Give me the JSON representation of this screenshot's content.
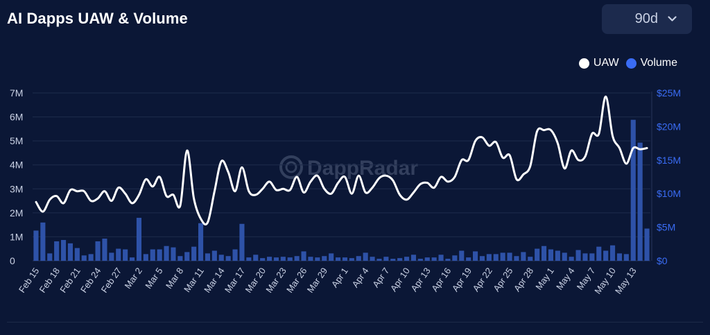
{
  "title": "AI Dapps UAW & Volume",
  "range_selector": {
    "value": "90d",
    "icon": "chevron-down-icon"
  },
  "legend": [
    {
      "label": "UAW",
      "color": "#ffffff"
    },
    {
      "label": "Volume",
      "color": "#3a6cf4"
    }
  ],
  "watermark": "DappRadar",
  "colors": {
    "background": "#0b1736",
    "grid": "#1e2c4c",
    "uaw": "#ffffff",
    "volume": "#2e52a8",
    "volume_axis": "#3a6cf4",
    "left_axis": "#c9d1e4"
  },
  "chart_data": {
    "type": "bar+line",
    "title": "AI Dapps UAW & Volume",
    "categories": [
      "Feb 15",
      "Feb 16",
      "Feb 17",
      "Feb 18",
      "Feb 19",
      "Feb 20",
      "Feb 21",
      "Feb 22",
      "Feb 23",
      "Feb 24",
      "Feb 25",
      "Feb 26",
      "Feb 27",
      "Feb 28",
      "Mar 1",
      "Mar 2",
      "Mar 3",
      "Mar 4",
      "Mar 5",
      "Mar 6",
      "Mar 7",
      "Mar 8",
      "Mar 9",
      "Mar 10",
      "Mar 11",
      "Mar 12",
      "Mar 13",
      "Mar 14",
      "Mar 15",
      "Mar 16",
      "Mar 17",
      "Mar 18",
      "Mar 19",
      "Mar 20",
      "Mar 21",
      "Mar 22",
      "Mar 23",
      "Mar 24",
      "Mar 25",
      "Mar 26",
      "Mar 27",
      "Mar 28",
      "Mar 29",
      "Mar 30",
      "Mar 31",
      "Apr 1",
      "Apr 2",
      "Apr 3",
      "Apr 4",
      "Apr 5",
      "Apr 6",
      "Apr 7",
      "Apr 8",
      "Apr 9",
      "Apr 10",
      "Apr 11",
      "Apr 12",
      "Apr 13",
      "Apr 14",
      "Apr 15",
      "Apr 16",
      "Apr 17",
      "Apr 18",
      "Apr 19",
      "Apr 20",
      "Apr 21",
      "Apr 22",
      "Apr 23",
      "Apr 24",
      "Apr 25",
      "Apr 26",
      "Apr 27",
      "Apr 28",
      "Apr 29",
      "Apr 30",
      "May 1",
      "May 2",
      "May 3",
      "May 4",
      "May 5",
      "May 6",
      "May 7",
      "May 8",
      "May 9",
      "May 10",
      "May 11",
      "May 12",
      "May 13",
      "May 14",
      "May 15"
    ],
    "tick_labels": [
      "Feb 15",
      "Feb 18",
      "Feb 21",
      "Feb 24",
      "Feb 27",
      "Mar 2",
      "Mar 5",
      "Mar 8",
      "Mar 11",
      "Mar 14",
      "Mar 17",
      "Mar 20",
      "Mar 23",
      "Mar 26",
      "Mar 29",
      "Apr 1",
      "Apr 4",
      "Apr 7",
      "Apr 10",
      "Apr 13",
      "Apr 16",
      "Apr 19",
      "Apr 22",
      "Apr 25",
      "Apr 28",
      "May 1",
      "May 4",
      "May 7",
      "May 10",
      "May 13"
    ],
    "series": [
      {
        "name": "UAW",
        "type": "line",
        "axis": "left",
        "values": [
          2.45,
          2.05,
          2.55,
          2.7,
          2.4,
          2.95,
          2.9,
          2.9,
          2.5,
          2.6,
          2.9,
          2.5,
          3.05,
          2.8,
          2.4,
          2.75,
          3.4,
          3.1,
          3.5,
          2.7,
          2.75,
          2.3,
          4.6,
          2.6,
          1.75,
          1.6,
          2.9,
          4.15,
          3.7,
          2.9,
          3.9,
          2.9,
          2.75,
          3.0,
          3.3,
          2.95,
          3.0,
          2.95,
          3.5,
          2.85,
          3.3,
          3.55,
          3.0,
          2.8,
          3.25,
          3.5,
          2.8,
          3.55,
          2.85,
          3.05,
          3.45,
          3.55,
          3.35,
          2.75,
          2.55,
          2.85,
          3.2,
          3.25,
          3.05,
          3.5,
          3.3,
          3.5,
          4.2,
          4.2,
          5.0,
          5.15,
          4.8,
          4.95,
          4.3,
          4.4,
          3.4,
          3.6,
          3.95,
          5.4,
          5.45,
          5.45,
          4.9,
          3.85,
          4.6,
          4.2,
          4.35,
          5.3,
          5.3,
          6.85,
          5.2,
          4.7,
          4.05,
          4.7,
          4.65,
          4.7
        ]
      },
      {
        "name": "Volume",
        "type": "bar",
        "axis": "right",
        "values": [
          4.5,
          5.7,
          1.1,
          2.9,
          3.1,
          2.6,
          1.9,
          0.8,
          1.0,
          2.9,
          3.3,
          1.2,
          1.8,
          1.7,
          0.5,
          6.4,
          1.0,
          1.7,
          1.7,
          2.2,
          2.0,
          0.7,
          1.3,
          2.1,
          5.6,
          1.1,
          1.5,
          0.9,
          0.7,
          1.7,
          5.5,
          0.5,
          0.9,
          0.4,
          0.6,
          0.5,
          0.6,
          0.5,
          0.7,
          1.4,
          0.6,
          0.5,
          0.7,
          1.1,
          0.5,
          0.5,
          0.4,
          0.7,
          1.2,
          0.6,
          0.3,
          0.6,
          0.3,
          0.4,
          0.6,
          0.9,
          0.3,
          0.5,
          0.5,
          0.9,
          0.3,
          0.8,
          1.5,
          0.5,
          1.4,
          0.7,
          1.0,
          1.0,
          1.2,
          1.2,
          0.7,
          1.3,
          0.6,
          1.8,
          2.2,
          1.7,
          1.5,
          1.2,
          0.6,
          1.6,
          1.1,
          1.1,
          2.1,
          1.5,
          2.3,
          1.1,
          1.0,
          21.0,
          17.6,
          4.8
        ]
      }
    ],
    "y_left": {
      "ticks": [
        "0",
        "1M",
        "2M",
        "3M",
        "4M",
        "5M",
        "6M",
        "7M"
      ],
      "range": [
        0,
        7
      ],
      "unit": "M"
    },
    "y_right": {
      "ticks": [
        "$0",
        "$5M",
        "$10M",
        "$15M",
        "$20M",
        "$25M"
      ],
      "range": [
        0,
        25
      ],
      "unit": "$M"
    },
    "legend_position": "top-right",
    "grid": true
  }
}
